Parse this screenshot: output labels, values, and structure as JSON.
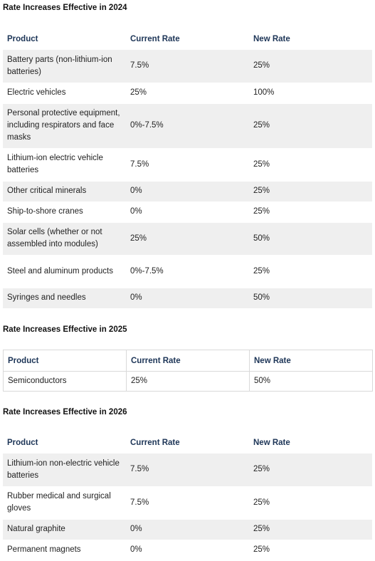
{
  "sections": [
    {
      "title": "Rate Increases Effective in 2024",
      "headers": [
        "Product",
        "Current Rate",
        "New Rate"
      ],
      "rows": [
        [
          "Battery parts (non-lithium-ion batteries)",
          "7.5%",
          "25%"
        ],
        [
          "Electric vehicles",
          "25%",
          "100%"
        ],
        [
          "Personal protective equipment, including respirators and face masks",
          "0%-7.5%",
          "25%"
        ],
        [
          "Lithium-ion electric vehicle batteries",
          "7.5%",
          "25%"
        ],
        [
          "Other critical minerals",
          "0%",
          "25%"
        ],
        [
          "Ship-to-shore cranes",
          "0%",
          "25%"
        ],
        [
          "Solar cells (whether or not assembled into modules)",
          "25%",
          "50%"
        ],
        [
          "Steel and aluminum products",
          "0%-7.5%",
          "25%"
        ],
        [
          "Syringes and needles",
          "0%",
          "50%"
        ]
      ]
    },
    {
      "title": "Rate Increases Effective in 2025",
      "headers": [
        "Product",
        "Current Rate",
        "New Rate"
      ],
      "rows": [
        [
          "Semiconductors",
          "25%",
          "50%"
        ]
      ]
    },
    {
      "title": "Rate Increases Effective in 2026",
      "headers": [
        "Product",
        "Current Rate",
        "New Rate"
      ],
      "rows": [
        [
          "Lithium-ion non-electric vehicle batteries",
          "7.5%",
          "25%"
        ],
        [
          "Rubber medical and surgical gloves",
          "7.5%",
          "25%"
        ],
        [
          "Natural graphite",
          "0%",
          "25%"
        ],
        [
          "Permanent magnets",
          "0%",
          "25%"
        ]
      ]
    }
  ]
}
